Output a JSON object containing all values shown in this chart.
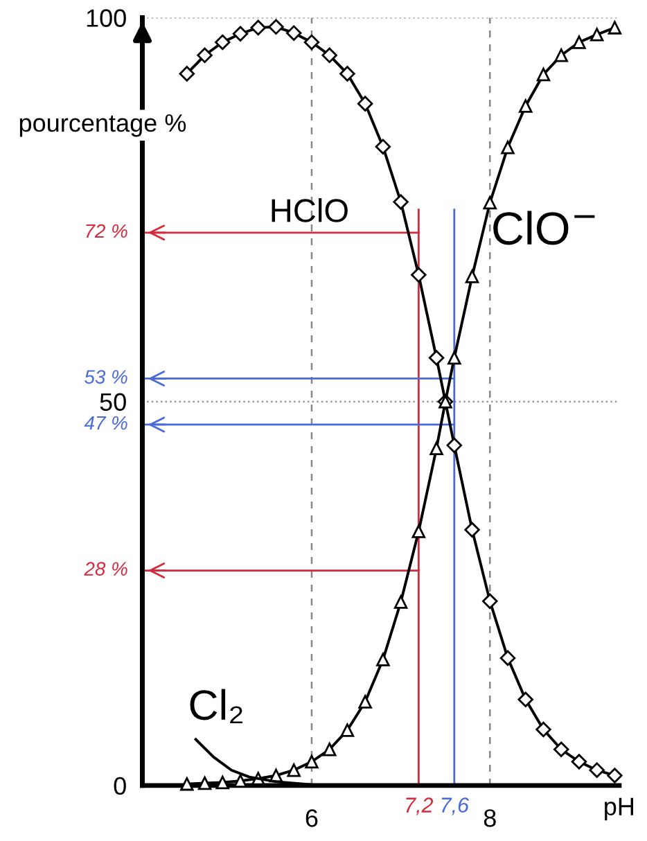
{
  "chart_data": {
    "type": "line",
    "ylabel": "pourcentage %",
    "xlabel": "pH",
    "xlim": [
      4.1,
      9.45
    ],
    "ylim": [
      0,
      100
    ],
    "xticks": [
      6,
      8
    ],
    "yticks": [
      0,
      50,
      100
    ],
    "grid": "x",
    "series": [
      {
        "color": "#000000",
        "marker": "diamond",
        "x": [
          4.6,
          4.8,
          5.0,
          5.2,
          5.4,
          5.6,
          5.8,
          6.0,
          6.2,
          6.4,
          6.6,
          6.8,
          7.0,
          7.2,
          7.4,
          7.5,
          7.6,
          7.8,
          8.0,
          8.2,
          8.4,
          8.6,
          8.8,
          9.0,
          9.2,
          9.4
        ],
        "values": [
          92.7,
          95.1,
          96.8,
          97.9,
          98.7,
          98.8,
          98.0,
          96.8,
          95.1,
          92.7,
          88.8,
          83.2,
          76.0,
          66.5,
          55.7,
          50,
          44.3,
          33.3,
          24.0,
          16.6,
          11.2,
          7.3,
          4.7,
          3.1,
          2.0,
          1.3
        ]
      },
      {
        "color": "#000000",
        "marker": "triangle",
        "x": [
          4.6,
          4.8,
          5.0,
          5.2,
          5.4,
          5.6,
          5.8,
          6.0,
          6.2,
          6.4,
          6.6,
          6.8,
          7.0,
          7.2,
          7.4,
          7.5,
          7.6,
          7.8,
          8.0,
          8.2,
          8.4,
          8.6,
          8.8,
          9.0,
          9.2,
          9.4
        ],
        "values": [
          0.2,
          0.3,
          0.4,
          0.6,
          0.9,
          1.3,
          2.0,
          3.1,
          4.7,
          7.2,
          10.9,
          16.4,
          23.9,
          33.1,
          43.9,
          50,
          55.7,
          66.3,
          75.9,
          83.1,
          88.5,
          92.6,
          95.1,
          96.8,
          97.8,
          98.7
        ]
      },
      {
        "color": "#000000",
        "marker": "none",
        "x": [
          4.7,
          4.9,
          5.1,
          5.3,
          5.6,
          6.0,
          6.4
        ],
        "values": [
          6.0,
          3.7,
          2.0,
          1.1,
          0.5,
          0.1,
          0
        ]
      }
    ],
    "ref_lines": [
      {
        "axis": "y",
        "value": 100,
        "color": "#999999",
        "line_style": "dotted"
      },
      {
        "axis": "y",
        "value": 50,
        "color": "#999999",
        "line_style": "dotted"
      },
      {
        "axis": "x",
        "value": 7.2,
        "label": "7,2",
        "color": "#d42a3c"
      },
      {
        "axis": "x",
        "value": 7.6,
        "label": "7,6",
        "color": "#4a6ad8"
      },
      {
        "axis": "y",
        "value": 72,
        "label": "72 %",
        "color": "#d42a3c"
      },
      {
        "axis": "y",
        "value": 53,
        "label": "53 %",
        "color": "#4a6ad8"
      },
      {
        "axis": "y",
        "value": 47,
        "label": "47 %",
        "color": "#4a6ad8"
      },
      {
        "axis": "y",
        "value": 28,
        "label": "28 %",
        "color": "#d42a3c"
      }
    ],
    "annotations": [
      "HClO",
      "ClO$^{−}$",
      "Cl₂"
    ]
  }
}
